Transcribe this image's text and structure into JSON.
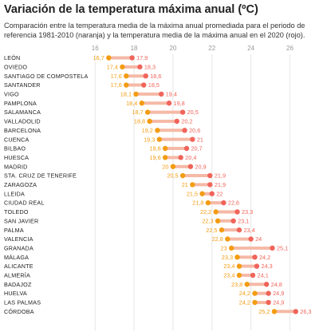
{
  "title": "Variación de la temperatura máxima anual (ºC)",
  "subtitle": "Comparación entre la temperatura media de la máxima anual promediada para el periodo de referencia 1981-2010 (naranja) y la temperatura media de la máxima anual en el 2020 (rojo).",
  "colors": {
    "ref": "#f39c12",
    "y2020": "#f0645a",
    "bar": "#f5b9a6",
    "grid": "#e6e6e6"
  },
  "chart_data": {
    "type": "dumbbell",
    "x_ticks": [
      16,
      18,
      20,
      22,
      24,
      26
    ],
    "xlim": [
      15.5,
      26.8
    ],
    "grid": true,
    "series": [
      {
        "name": "1981-2010 (naranja)",
        "color": "#f39c12"
      },
      {
        "name": "2020 (rojo)",
        "color": "#f0645a"
      }
    ],
    "rows": [
      {
        "city": "LEÓN",
        "ref": 16.7,
        "y2020": 17.9
      },
      {
        "city": "OVIEDO",
        "ref": 17.4,
        "y2020": 18.3
      },
      {
        "city": "SANTIAGO DE COMPOSTELA",
        "ref": 17.6,
        "y2020": 18.6
      },
      {
        "city": "SANTANDER",
        "ref": 17.6,
        "y2020": 18.5
      },
      {
        "city": "VIGO",
        "ref": 18.1,
        "y2020": 19.4
      },
      {
        "city": "PAMPLONA",
        "ref": 18.4,
        "y2020": 19.8
      },
      {
        "city": "SALAMANCA",
        "ref": 18.7,
        "y2020": 20.5
      },
      {
        "city": "VALLADOLID",
        "ref": 18.8,
        "y2020": 20.2
      },
      {
        "city": "BARCELONA",
        "ref": 19.2,
        "y2020": 20.6
      },
      {
        "city": "CUENCA",
        "ref": 19.3,
        "y2020": 21
      },
      {
        "city": "BILBAO",
        "ref": 19.6,
        "y2020": 20.7
      },
      {
        "city": "HUESCA",
        "ref": 19.6,
        "y2020": 20.4
      },
      {
        "city": "MADRID",
        "ref": 20,
        "y2020": 20.9
      },
      {
        "city": "STA. CRUZ DE TENERIFE",
        "ref": 20.5,
        "y2020": 21.9
      },
      {
        "city": "ZARAGOZA",
        "ref": 21,
        "y2020": 21.9
      },
      {
        "city": "LLEIDA",
        "ref": 21.5,
        "y2020": 22
      },
      {
        "city": "CIUDAD REAL",
        "ref": 21.8,
        "y2020": 22.6
      },
      {
        "city": "TOLEDO",
        "ref": 22.2,
        "y2020": 23.3
      },
      {
        "city": "SAN JAVIER",
        "ref": 22.3,
        "y2020": 23.1
      },
      {
        "city": "PALMA",
        "ref": 22.5,
        "y2020": 23.4
      },
      {
        "city": "VALENCIA",
        "ref": 22.8,
        "y2020": 24
      },
      {
        "city": "GRANADA",
        "ref": 23,
        "y2020": 25.1
      },
      {
        "city": "MÁLAGA",
        "ref": 23.3,
        "y2020": 24.2
      },
      {
        "city": "ALICANTE",
        "ref": 23.4,
        "y2020": 24.3
      },
      {
        "city": "ALMERÍA",
        "ref": 23.4,
        "y2020": 24.1
      },
      {
        "city": "BADAJOZ",
        "ref": 23.8,
        "y2020": 24.8
      },
      {
        "city": "HUELVA",
        "ref": 24.2,
        "y2020": 24.9
      },
      {
        "city": "LAS PALMAS",
        "ref": 24.2,
        "y2020": 24.9
      },
      {
        "city": "CÓRDOBA",
        "ref": 25.2,
        "y2020": 26.3
      }
    ]
  }
}
